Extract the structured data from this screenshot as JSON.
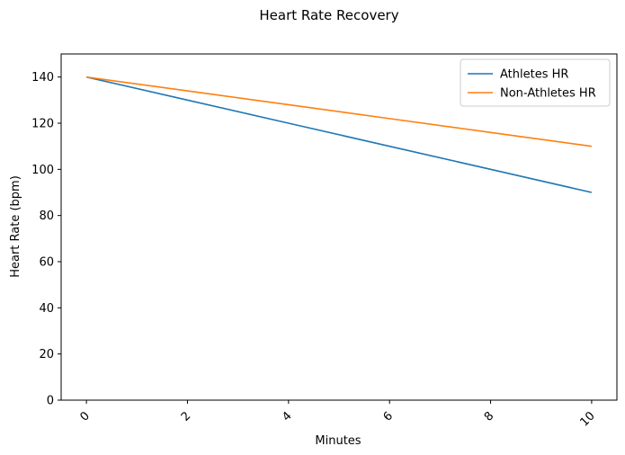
{
  "chart_data": {
    "type": "line",
    "title": "Heart Rate Recovery",
    "xlabel": "Minutes",
    "ylabel": "Heart Rate (bpm)",
    "x": [
      0,
      2,
      4,
      6,
      8,
      10
    ],
    "xlim": [
      -0.5,
      10.5
    ],
    "ylim": [
      0,
      150
    ],
    "xticks": [
      0,
      2,
      4,
      6,
      8,
      10
    ],
    "yticks": [
      0,
      20,
      40,
      60,
      80,
      100,
      120,
      140
    ],
    "xtick_rotation": 45,
    "grid": false,
    "legend_position": "top-right",
    "series": [
      {
        "name": "Athletes HR",
        "color": "#1f77b4",
        "values": [
          140,
          130,
          120,
          110,
          100,
          90
        ]
      },
      {
        "name": "Non-Athletes HR",
        "color": "#ff7f0e",
        "values": [
          140,
          134,
          128,
          122,
          116,
          110
        ]
      }
    ]
  }
}
